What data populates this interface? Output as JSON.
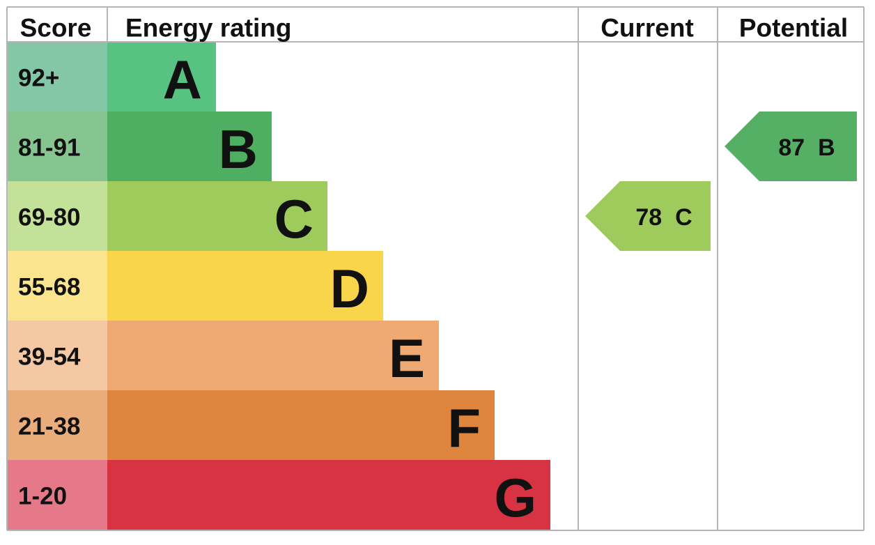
{
  "chart_data": {
    "type": "bar",
    "headers": {
      "score": "Score",
      "rating": "Energy rating",
      "current": "Current",
      "potential": "Potential"
    },
    "bands": [
      {
        "score": "92+",
        "letter": "A",
        "bar_color": "#58C283",
        "score_bg": "#84C7A6"
      },
      {
        "score": "81-91",
        "letter": "B",
        "bar_color": "#4EAF62",
        "score_bg": "#86C58F"
      },
      {
        "score": "69-80",
        "letter": "C",
        "bar_color": "#9ECB5B",
        "score_bg": "#C4E19A"
      },
      {
        "score": "55-68",
        "letter": "D",
        "bar_color": "#F8D54A",
        "score_bg": "#FAE58E"
      },
      {
        "score": "39-54",
        "letter": "E",
        "bar_color": "#EFAA73",
        "score_bg": "#F4C8A2"
      },
      {
        "score": "21-38",
        "letter": "F",
        "bar_color": "#E0853D",
        "score_bg": "#E8AD7B"
      },
      {
        "score": "1-20",
        "letter": "G",
        "bar_color": "#D83342",
        "score_bg": "#E57989"
      }
    ],
    "current": {
      "value": 78,
      "letter": "C",
      "label": "78  C",
      "color": "#9ECB5B"
    },
    "potential": {
      "value": 87,
      "letter": "B",
      "label": "87  B",
      "color": "#55AF64"
    },
    "grid_color": "#B5B5B5"
  }
}
